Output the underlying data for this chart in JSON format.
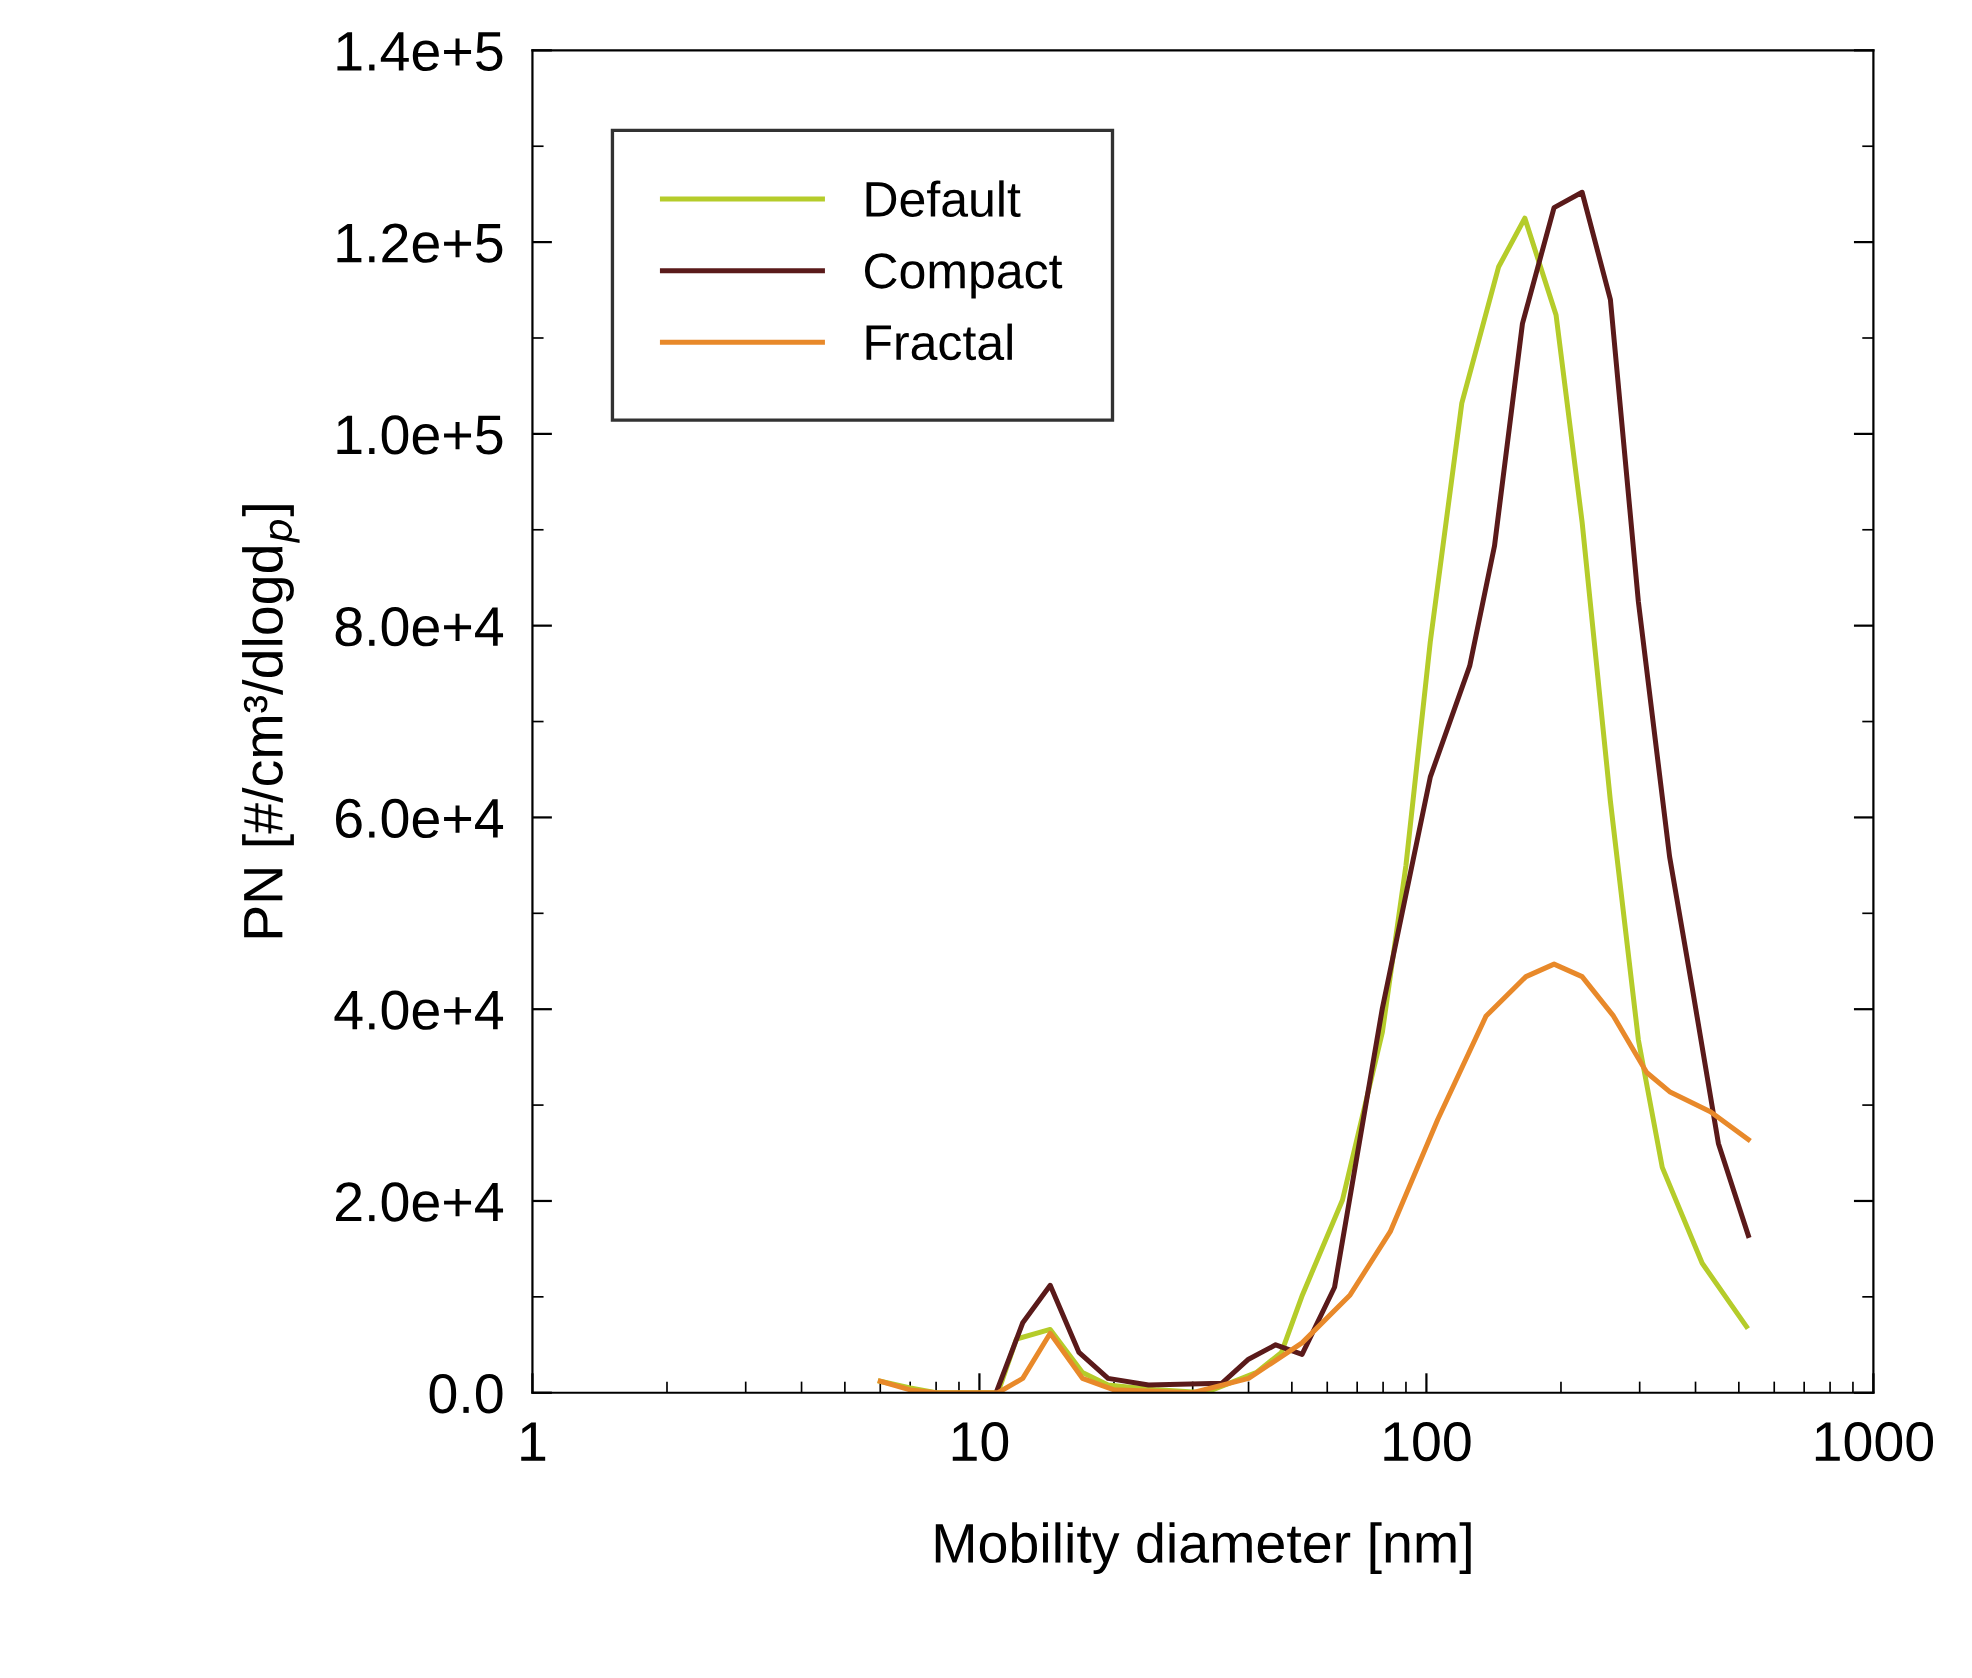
{
  "chart_data": {
    "type": "line",
    "xlabel": "Mobility diameter [nm]",
    "ylabel": "PN [#/cm³/dlogd$_{p}$]",
    "log": "x",
    "xlim": [
      1,
      1000
    ],
    "xticks": [
      1,
      10,
      100,
      1000
    ],
    "ylim": [
      0,
      140000
    ],
    "yticks": [
      {
        "value": 0,
        "label": "0.0"
      },
      {
        "value": 20000,
        "label": "2.0e+4"
      },
      {
        "value": 40000,
        "label": "4.0e+4"
      },
      {
        "value": 60000,
        "label": "6.0e+4"
      },
      {
        "value": 80000,
        "label": "8.0e+4"
      },
      {
        "value": 100000,
        "label": "1.0e+5"
      },
      {
        "value": 120000,
        "label": "1.2e+5"
      },
      {
        "value": 140000,
        "label": "1.4e+5"
      }
    ],
    "grid": false,
    "legend": "top left",
    "line_style": "solid",
    "marker": "none",
    "series": [
      {
        "name": "Default",
        "color": "#b5cc2a",
        "x": [
          6,
          7,
          8,
          10,
          11,
          12.1,
          14.4,
          17,
          19.4,
          25,
          32,
          41.6,
          47.4,
          52.8,
          64.9,
          79.7,
          90,
          102,
          120,
          145,
          166,
          195,
          223,
          258,
          298,
          337,
          414,
          520
        ],
        "values": [
          1200,
          500,
          0,
          0,
          0,
          5600,
          6600,
          2100,
          800,
          300,
          0,
          2100,
          4200,
          10200,
          20100,
          37600,
          55000,
          78300,
          103200,
          117400,
          122500,
          112400,
          90800,
          61700,
          36800,
          23500,
          13500,
          6900
        ]
      },
      {
        "name": "Compact",
        "color": "#5a1a1a",
        "x": [
          10.9,
          12.5,
          14.4,
          16.7,
          19.4,
          23.9,
          34.9,
          40,
          46,
          52.7,
          62.3,
          79.7,
          102,
          125,
          142,
          164,
          193,
          223,
          258,
          298,
          350,
          395,
          450,
          525
        ],
        "values": [
          0,
          7300,
          11200,
          4200,
          1500,
          800,
          1000,
          3500,
          5000,
          4000,
          11000,
          40100,
          64200,
          75800,
          88300,
          111500,
          123600,
          125200,
          114000,
          82500,
          55900,
          41700,
          26000,
          16400
        ]
      },
      {
        "name": "Fractal",
        "color": "#e8892a",
        "x": [
          6,
          7,
          8,
          10,
          11,
          12.5,
          14.4,
          17,
          20,
          30,
          40,
          52.7,
          67.5,
          83,
          106,
          136,
          167,
          193,
          223,
          262,
          311,
          350,
          432,
          525
        ],
        "values": [
          1200,
          300,
          0,
          0,
          0,
          1500,
          6200,
          1500,
          300,
          0,
          1500,
          5200,
          10200,
          16800,
          28500,
          39300,
          43400,
          44700,
          43400,
          39300,
          33400,
          31400,
          29300,
          26400
        ]
      }
    ]
  }
}
